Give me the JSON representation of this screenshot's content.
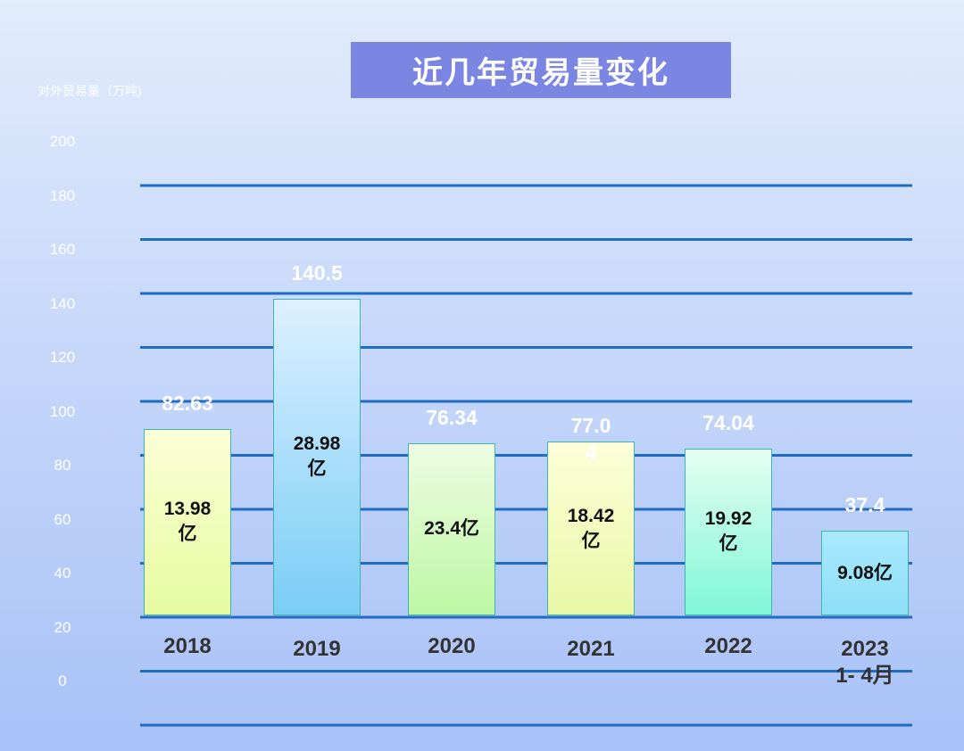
{
  "chart_data": {
    "type": "bar",
    "title": "近几年贸易量变化",
    "ylabel": "对外贸易量（万吨)",
    "ylim": [
      0,
      200
    ],
    "yticks": [
      "200",
      "180",
      "160",
      "140",
      "120",
      "100",
      "80",
      "60",
      "40",
      "20",
      "0"
    ],
    "grid": true,
    "categories": [
      {
        "line1": "2018",
        "line2": ""
      },
      {
        "line1": "2019",
        "line2": ""
      },
      {
        "line1": "2020",
        "line2": ""
      },
      {
        "line1": "2021",
        "line2": ""
      },
      {
        "line1": "2022",
        "line2": ""
      },
      {
        "line1": "2023",
        "line2": "1- 4月"
      }
    ],
    "values": [
      82.63,
      140.5,
      76.34,
      77.04,
      74.04,
      37.4
    ],
    "value_labels": [
      "82.63",
      "140.5",
      "76.34",
      "77.0 4",
      "74.04",
      "37.4"
    ],
    "inner_labels": [
      {
        "line1": "13.98",
        "line2": "亿"
      },
      {
        "line1": "28.98",
        "line2": "亿"
      },
      {
        "line1": "23.4亿",
        "line2": ""
      },
      {
        "line1": "18.42",
        "line2": "亿"
      },
      {
        "line1": "19.92",
        "line2": "亿"
      },
      {
        "line1": "9.08亿",
        "line2": ""
      }
    ],
    "bar_colors": [
      {
        "top": "#fbffd6",
        "bottom": "#e7fba0"
      },
      {
        "top": "#ddf0ff",
        "bottom": "#79cdf6"
      },
      {
        "top": "#eefce2",
        "bottom": "#bdf7a4"
      },
      {
        "top": "#fcffd9",
        "bottom": "#e9f7a6"
      },
      {
        "top": "#e6fff3",
        "bottom": "#7ff6d5"
      },
      {
        "top": "#a9e8fb",
        "bottom": "#8edffa"
      }
    ],
    "grid_color": "#1f6cc0"
  }
}
